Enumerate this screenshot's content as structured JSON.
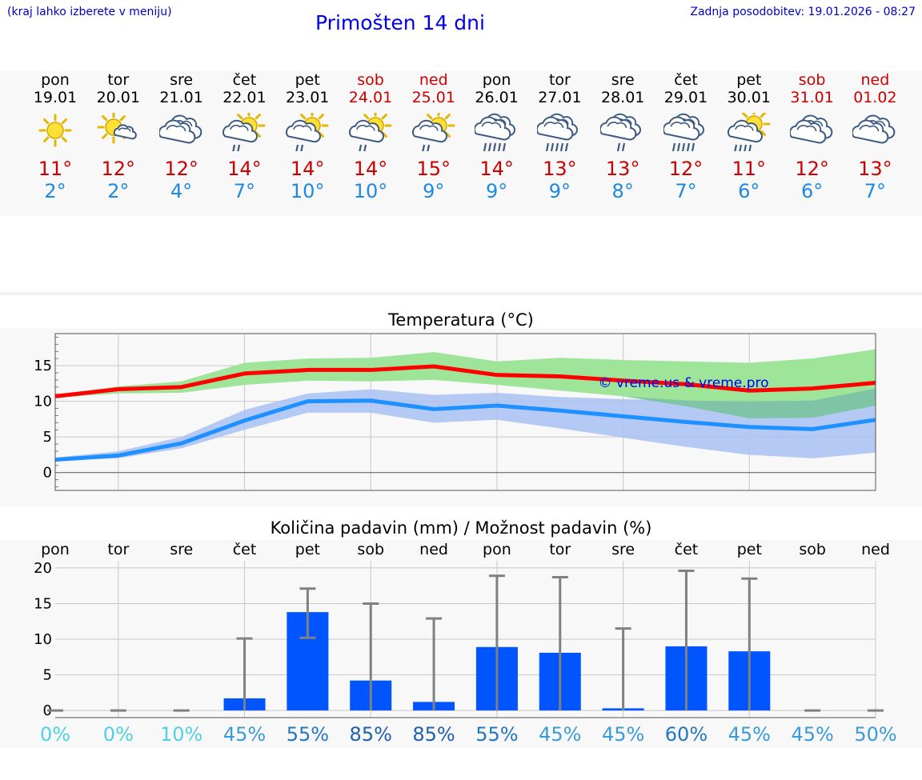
{
  "header": {
    "hint": "(kraj lahko izberete v meniju)",
    "title": "Primošten 14 dni",
    "updated": "Zadnja posodobitev: 19.01.2026 - 08:27"
  },
  "days": [
    {
      "name": "pon",
      "date": "19.01",
      "max": "11°",
      "min": "2°",
      "weekend": false,
      "icon": "sun-icon"
    },
    {
      "name": "tor",
      "date": "20.01",
      "max": "12°",
      "min": "2°",
      "weekend": false,
      "icon": "sun-small-cloud-icon"
    },
    {
      "name": "sre",
      "date": "21.01",
      "max": "12°",
      "min": "4°",
      "weekend": false,
      "icon": "cloudy-icon"
    },
    {
      "name": "čet",
      "date": "22.01",
      "max": "14°",
      "min": "7°",
      "weekend": false,
      "icon": "sun-cloud-rain-icon"
    },
    {
      "name": "pet",
      "date": "23.01",
      "max": "14°",
      "min": "10°",
      "weekend": false,
      "icon": "sun-cloud-rain-icon"
    },
    {
      "name": "sob",
      "date": "24.01",
      "max": "14°",
      "min": "10°",
      "weekend": true,
      "icon": "sun-cloud-rain-icon"
    },
    {
      "name": "ned",
      "date": "25.01",
      "max": "15°",
      "min": "9°",
      "weekend": true,
      "icon": "sun-cloud-rain-icon"
    },
    {
      "name": "pon",
      "date": "26.01",
      "max": "14°",
      "min": "9°",
      "weekend": false,
      "icon": "cloud-heavy-rain-icon"
    },
    {
      "name": "tor",
      "date": "27.01",
      "max": "13°",
      "min": "9°",
      "weekend": false,
      "icon": "cloud-heavy-rain-icon"
    },
    {
      "name": "sre",
      "date": "28.01",
      "max": "13°",
      "min": "8°",
      "weekend": false,
      "icon": "cloud-rain-icon"
    },
    {
      "name": "čet",
      "date": "29.01",
      "max": "12°",
      "min": "7°",
      "weekend": false,
      "icon": "cloud-heavy-rain-icon"
    },
    {
      "name": "pet",
      "date": "30.01",
      "max": "11°",
      "min": "6°",
      "weekend": false,
      "icon": "sun-cloud-heavy-rain-icon"
    },
    {
      "name": "sob",
      "date": "31.01",
      "max": "12°",
      "min": "6°",
      "weekend": true,
      "icon": "cloudy-icon"
    },
    {
      "name": "ned",
      "date": "01.02",
      "max": "13°",
      "min": "7°",
      "weekend": true,
      "icon": "cloudy-icon"
    }
  ],
  "colors": {
    "max": "#cc0000",
    "min": "#1e88e5",
    "max_line": "#ff0000",
    "min_line": "#1e90ff",
    "max_band": "#9ee59a",
    "min_band": "#a9c1f5",
    "overlap_band": "#7fc4a6",
    "bar": "#0055ff",
    "whisker": "#808080"
  },
  "chart_data": [
    {
      "type": "line",
      "title": "Temperatura (°C)",
      "watermark": "© vreme.us & vreme.pro",
      "ylim": [
        -2.5,
        19.5
      ],
      "yticks": [
        0,
        5,
        10,
        15
      ],
      "grid": true,
      "series": [
        {
          "name": "max",
          "values": [
            10.7,
            11.7,
            12.0,
            13.9,
            14.4,
            14.4,
            14.9,
            13.7,
            13.5,
            12.9,
            12.4,
            11.5,
            11.8,
            12.6
          ],
          "band_low": [
            10.5,
            11.1,
            11.2,
            12.3,
            12.9,
            12.8,
            13.0,
            12.3,
            11.5,
            10.7,
            9.3,
            7.6,
            7.7,
            9.4
          ],
          "band_high": [
            10.9,
            12.1,
            12.8,
            15.4,
            16.0,
            16.1,
            16.9,
            15.6,
            16.1,
            15.8,
            15.6,
            15.4,
            16.0,
            17.3
          ]
        },
        {
          "name": "min",
          "values": [
            1.8,
            2.4,
            4.1,
            7.3,
            10.0,
            10.1,
            8.9,
            9.4,
            8.7,
            7.9,
            7.1,
            6.4,
            6.1,
            7.4
          ],
          "band_low": [
            1.7,
            2.0,
            3.4,
            6.0,
            8.4,
            8.4,
            7.0,
            7.4,
            6.2,
            4.9,
            3.6,
            2.5,
            2.0,
            2.8
          ],
          "band_high": [
            2.1,
            3.0,
            5.0,
            8.8,
            11.1,
            11.7,
            10.9,
            11.2,
            10.6,
            10.3,
            10.1,
            10.0,
            10.1,
            11.8
          ]
        }
      ]
    },
    {
      "type": "bar",
      "title": "Količina padavin (mm) / Možnost padavin (%)",
      "categories": [
        "pon",
        "tor",
        "sre",
        "čet",
        "pet",
        "sob",
        "ned",
        "pon",
        "tor",
        "sre",
        "čet",
        "pet",
        "sob",
        "ned"
      ],
      "values": [
        0,
        0,
        0,
        1.7,
        13.8,
        4.2,
        1.2,
        8.9,
        8.1,
        0.3,
        9.0,
        8.3,
        0,
        0
      ],
      "whisker_low": [
        0,
        0,
        0,
        0,
        10.2,
        0,
        0,
        0,
        0,
        0,
        0,
        0,
        0,
        0
      ],
      "whisker_high": [
        0,
        0,
        0,
        10.1,
        17.1,
        15.0,
        12.9,
        18.9,
        18.7,
        11.5,
        19.6,
        18.5,
        0,
        0
      ],
      "ylim": [
        -1,
        21
      ],
      "yticks": [
        0,
        5,
        10,
        15,
        20
      ],
      "chance": [
        "0%",
        "0%",
        "10%",
        "45%",
        "55%",
        "85%",
        "85%",
        "55%",
        "45%",
        "45%",
        "60%",
        "45%",
        "45%",
        "50%"
      ],
      "chance_values": [
        0,
        0,
        10,
        45,
        55,
        85,
        85,
        55,
        45,
        45,
        60,
        45,
        45,
        50
      ]
    }
  ]
}
